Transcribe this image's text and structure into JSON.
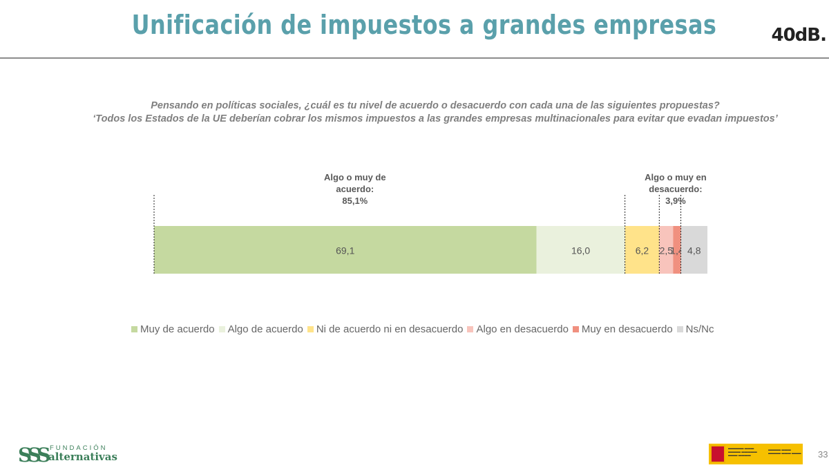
{
  "title": "Unificación de impuestos a grandes empresas",
  "brand": "40dB.",
  "question_line1": "Pensando en políticas sociales, ¿cuál es tu nivel de acuerdo o desacuerdo con cada una de las siguientes propuestas?",
  "question_line2": "‘Todos los Estados de la UE deberían cobrar los mismos impuestos a las grandes empresas multinacionales para evitar que evadan impuestos’",
  "chart_data": {
    "type": "bar",
    "orientation": "horizontal-stacked-100",
    "xlim": [
      0,
      100
    ],
    "series": [
      {
        "name": "Muy de acuerdo",
        "value": 69.1,
        "label": "69,1",
        "color": "#c5d9a0"
      },
      {
        "name": "Algo de acuerdo",
        "value": 16.0,
        "label": "16,0",
        "color": "#eaf1dd"
      },
      {
        "name": "Ni de acuerdo ni en desacuerdo",
        "value": 6.2,
        "label": "6,2",
        "color": "#ffe38a"
      },
      {
        "name": "Algo en desacuerdo",
        "value": 2.5,
        "label": "2,5",
        "color": "#f8c4bc"
      },
      {
        "name": "Muy en desacuerdo",
        "value": 1.4,
        "label": "1,4",
        "color": "#f0907f"
      },
      {
        "name": "Ns/Nc",
        "value": 4.8,
        "label": "4,8",
        "color": "#d9d9d9"
      }
    ],
    "annotations": [
      {
        "lines": [
          "Algo o muy de",
          "acuerdo:",
          "85,1%"
        ],
        "from": 0,
        "to": 85.1
      },
      {
        "lines": [
          "Algo o muy en",
          "desacuerdo:",
          "3,9%"
        ],
        "from": 91.3,
        "to": 95.2
      }
    ],
    "legend_position": "bottom"
  },
  "logo_left": {
    "top": "FUNDACIÓN",
    "bottom": "alternativas",
    "mark": "SSS"
  },
  "page_number": "33"
}
